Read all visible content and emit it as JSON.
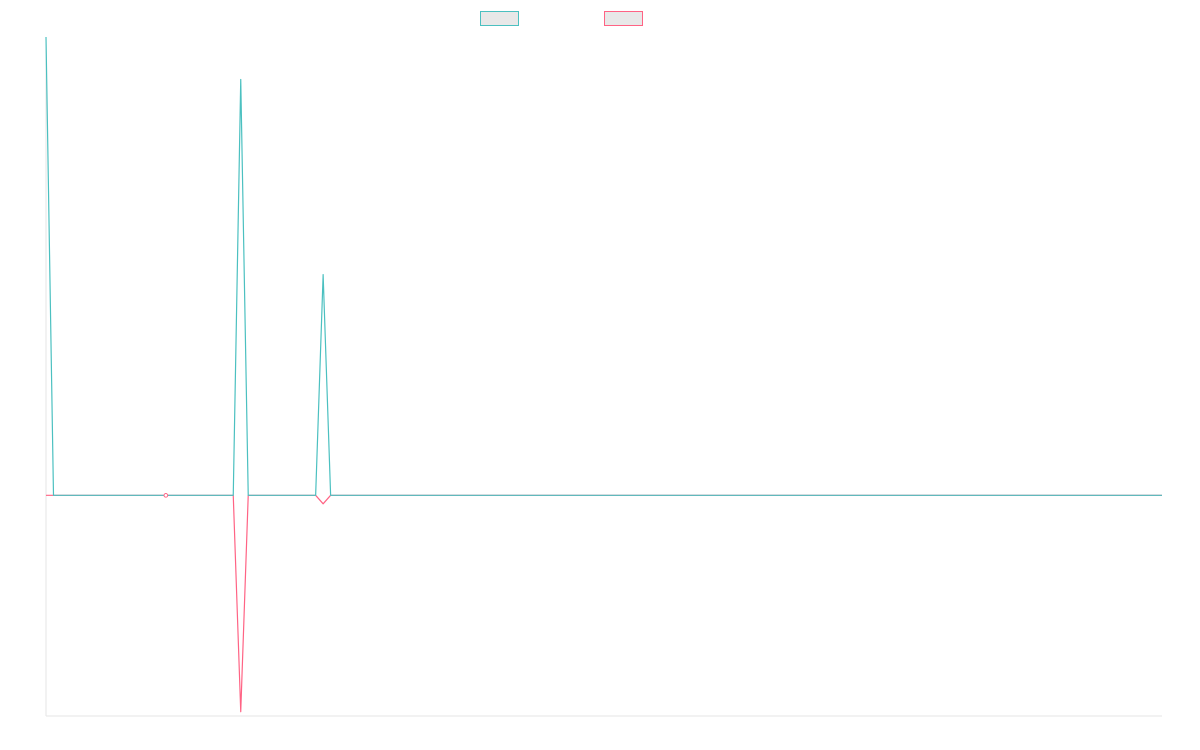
{
  "colors": {
    "series_1": "#4bc0c0",
    "series_2": "#ff6384",
    "axis": "#e6e6e6",
    "legend_fill": "#e8e8e8"
  },
  "chart_data": {
    "type": "line",
    "title": "",
    "xlabel": "",
    "ylabel": "",
    "grid": false,
    "legend_position": "top-center",
    "x_count": 150,
    "ylim": [
      -52,
      108
    ],
    "series": [
      {
        "name": "",
        "color": "#4bc0c0",
        "points": [
          [
            0,
            108
          ],
          [
            1,
            0
          ],
          [
            16,
            0
          ],
          [
            25,
            0
          ],
          [
            26,
            98
          ],
          [
            27,
            0
          ],
          [
            36,
            0
          ],
          [
            37,
            52
          ],
          [
            38,
            0
          ],
          [
            149,
            0
          ]
        ]
      },
      {
        "name": "",
        "color": "#ff6384",
        "points": [
          [
            0,
            0
          ],
          [
            16,
            0
          ],
          [
            25,
            0
          ],
          [
            26,
            -51
          ],
          [
            27,
            0
          ],
          [
            36,
            0
          ],
          [
            37,
            -2
          ],
          [
            38,
            0
          ],
          [
            149,
            0
          ]
        ]
      }
    ],
    "markers": [
      {
        "series": 1,
        "x": 16,
        "y": 0
      }
    ]
  }
}
